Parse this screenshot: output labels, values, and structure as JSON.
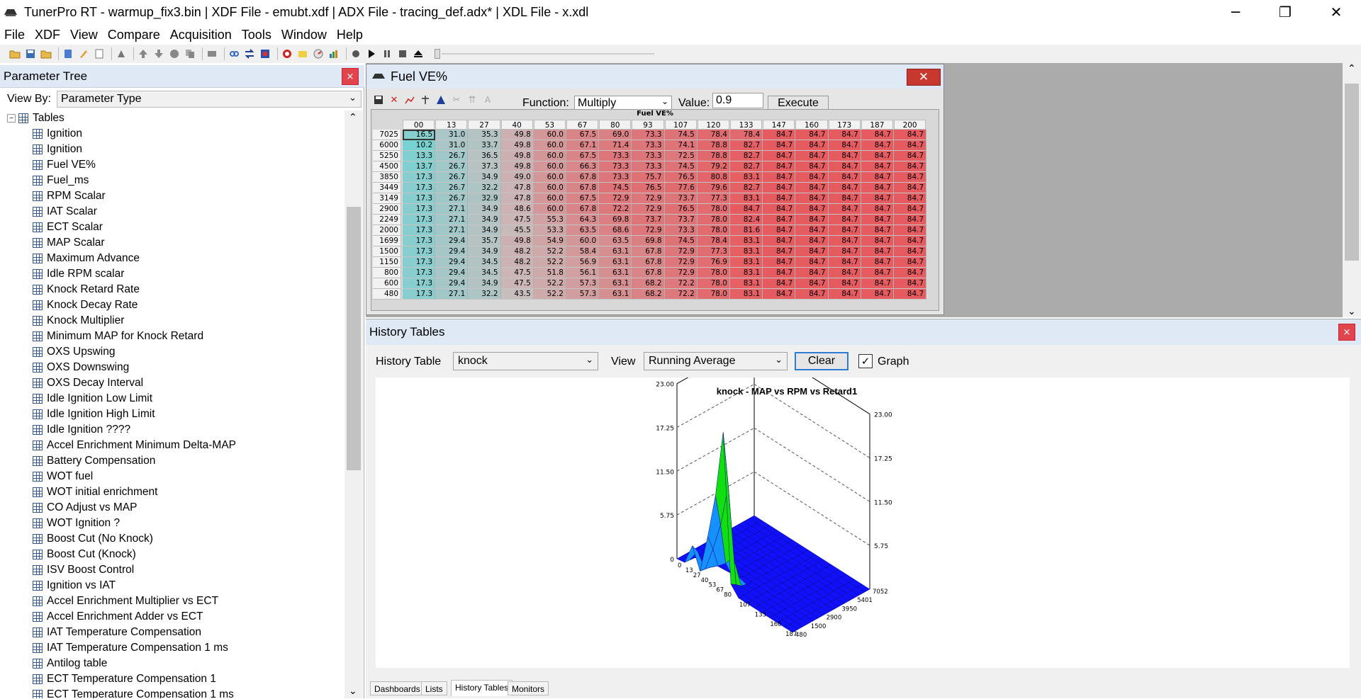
{
  "window": {
    "title": "TunerPro RT - warmup_fix3.bin | XDF File - emubt.xdf | ADX File - tracing_def.adx* | XDL File - x.xdl",
    "minimize": "─",
    "restore": "❐",
    "close": "✕"
  },
  "menu": [
    "File",
    "XDF",
    "View",
    "Compare",
    "Acquisition",
    "Tools",
    "Window",
    "Help"
  ],
  "param_tree": {
    "title": "Parameter Tree",
    "close": "×",
    "view_by_label": "View By:",
    "view_by_value": "Parameter Type",
    "root": "Tables",
    "items": [
      "Ignition",
      "Ignition",
      "Fuel VE%",
      "Fuel_ms",
      "RPM Scalar",
      "IAT Scalar",
      "ECT Scalar",
      "MAP Scalar",
      "Maximum Advance",
      "Idle RPM scalar",
      "Knock Retard Rate",
      "Knock Decay Rate",
      "Knock Multiplier",
      "Minimum MAP for Knock Retard",
      "OXS Upswing",
      "OXS Downswing",
      "OXS Decay Interval",
      "Idle Ignition Low Limit",
      "Idle Ignition High Limit",
      "Idle Ignition ????",
      "Accel Enrichment Minimum Delta-MAP",
      "Battery Compensation",
      "WOT fuel",
      "WOT initial enrichment",
      "CO Adjust vs MAP",
      "WOT Ignition ?",
      "Boost Cut (No Knock)",
      "Boost Cut (Knock)",
      "ISV Boost Control",
      "Ignition vs IAT",
      "Accel Enrichment Multiplier vs ECT",
      "Accel Enrichment Adder vs ECT",
      "IAT Temperature Compensation",
      "IAT Temperature Compensation 1 ms",
      "Antilog table",
      "ECT Temperature Compensation 1",
      "ECT Temperature Compensation 1 ms"
    ]
  },
  "fuel_ve": {
    "title": "Fuel VE%",
    "close": "✕",
    "function_label": "Function:",
    "function_value": "Multiply",
    "value_label": "Value:",
    "value": "0.9",
    "execute": "Execute",
    "grid_title": "Fuel VE%",
    "cols": [
      "00",
      "13",
      "27",
      "40",
      "53",
      "67",
      "80",
      "93",
      "107",
      "120",
      "133",
      "147",
      "160",
      "173",
      "187",
      "200"
    ],
    "rows": [
      "7025",
      "6000",
      "5250",
      "4500",
      "3850",
      "3449",
      "3149",
      "2900",
      "2249",
      "2000",
      "1699",
      "1500",
      "1150",
      "800",
      "600",
      "480"
    ],
    "values": [
      [
        "16.5",
        "31.0",
        "35.3",
        "49.8",
        "60.0",
        "67.5",
        "69.0",
        "73.3",
        "74.5",
        "78.4",
        "78.4",
        "84.7",
        "84.7",
        "84.7",
        "84.7",
        "84.7"
      ],
      [
        "10.2",
        "31.0",
        "33.7",
        "49.8",
        "60.0",
        "67.1",
        "71.4",
        "73.3",
        "74.1",
        "78.8",
        "82.7",
        "84.7",
        "84.7",
        "84.7",
        "84.7",
        "84.7"
      ],
      [
        "13.3",
        "26.7",
        "36.5",
        "49.8",
        "60.0",
        "67.5",
        "73.3",
        "73.3",
        "72.5",
        "78.8",
        "82.7",
        "84.7",
        "84.7",
        "84.7",
        "84.7",
        "84.7"
      ],
      [
        "13.7",
        "26.7",
        "37.3",
        "49.8",
        "60.0",
        "66.3",
        "73.3",
        "73.3",
        "74.5",
        "79.2",
        "82.7",
        "84.7",
        "84.7",
        "84.7",
        "84.7",
        "84.7"
      ],
      [
        "17.3",
        "26.7",
        "34.9",
        "49.0",
        "60.0",
        "67.8",
        "73.3",
        "75.7",
        "76.5",
        "80.8",
        "83.1",
        "84.7",
        "84.7",
        "84.7",
        "84.7",
        "84.7"
      ],
      [
        "17.3",
        "26.7",
        "32.2",
        "47.8",
        "60.0",
        "67.8",
        "74.5",
        "76.5",
        "77.6",
        "79.6",
        "82.7",
        "84.7",
        "84.7",
        "84.7",
        "84.7",
        "84.7"
      ],
      [
        "17.3",
        "26.7",
        "32.9",
        "47.8",
        "60.0",
        "67.5",
        "72.9",
        "72.9",
        "73.7",
        "77.3",
        "83.1",
        "84.7",
        "84.7",
        "84.7",
        "84.7",
        "84.7"
      ],
      [
        "17.3",
        "27.1",
        "34.9",
        "48.6",
        "60.0",
        "67.8",
        "72.2",
        "72.9",
        "76.5",
        "78.0",
        "84.7",
        "84.7",
        "84.7",
        "84.7",
        "84.7",
        "84.7"
      ],
      [
        "17.3",
        "27.1",
        "34.9",
        "47.5",
        "55.3",
        "64.3",
        "69.8",
        "73.7",
        "73.7",
        "78.0",
        "82.4",
        "84.7",
        "84.7",
        "84.7",
        "84.7",
        "84.7"
      ],
      [
        "17.3",
        "27.1",
        "34.9",
        "45.5",
        "53.3",
        "63.5",
        "68.6",
        "72.9",
        "73.3",
        "78.0",
        "81.6",
        "84.7",
        "84.7",
        "84.7",
        "84.7",
        "84.7"
      ],
      [
        "17.3",
        "29.4",
        "35.7",
        "49.8",
        "54.9",
        "60.0",
        "63.5",
        "69.8",
        "74.5",
        "78.4",
        "83.1",
        "84.7",
        "84.7",
        "84.7",
        "84.7",
        "84.7"
      ],
      [
        "17.3",
        "29.4",
        "34.9",
        "48.2",
        "52.2",
        "58.4",
        "63.1",
        "67.8",
        "72.9",
        "77.3",
        "83.1",
        "84.7",
        "84.7",
        "84.7",
        "84.7",
        "84.7"
      ],
      [
        "17.3",
        "29.4",
        "34.5",
        "48.2",
        "52.2",
        "56.9",
        "63.1",
        "67.8",
        "72.9",
        "76.9",
        "83.1",
        "84.7",
        "84.7",
        "84.7",
        "84.7",
        "84.7"
      ],
      [
        "17.3",
        "29.4",
        "34.5",
        "47.5",
        "51.8",
        "56.1",
        "63.1",
        "67.8",
        "72.9",
        "78.0",
        "83.1",
        "84.7",
        "84.7",
        "84.7",
        "84.7",
        "84.7"
      ],
      [
        "17.3",
        "29.4",
        "34.9",
        "47.5",
        "52.2",
        "57.3",
        "63.1",
        "68.2",
        "72.2",
        "78.0",
        "83.1",
        "84.7",
        "84.7",
        "84.7",
        "84.7",
        "84.7"
      ],
      [
        "17.3",
        "27.1",
        "32.2",
        "43.5",
        "52.2",
        "57.3",
        "63.1",
        "68.2",
        "72.2",
        "78.0",
        "83.1",
        "84.7",
        "84.7",
        "84.7",
        "84.7",
        "84.7"
      ]
    ]
  },
  "history": {
    "title": "History Tables",
    "close": "×",
    "table_label": "History Table",
    "table_value": "knock",
    "view_label": "View",
    "view_value": "Running Average",
    "clear": "Clear",
    "graph_label": "Graph",
    "graph_checked": true
  },
  "chart_data": {
    "type": "surface3d",
    "title": "knock - MAP vs RPM vs Retard1",
    "zticks_left": [
      "23.00",
      "17.25",
      "11.50",
      "5.75",
      "0"
    ],
    "zticks_right": [
      "23.00",
      "17.25",
      "11.50",
      "5.75"
    ],
    "xticks": [
      "0",
      "13",
      "27",
      "40",
      "53",
      "67",
      "80",
      "107",
      "133",
      "160",
      "187"
    ],
    "yticks": [
      "480",
      "1500",
      "2900",
      "3950",
      "5401",
      "7052"
    ],
    "zlim": [
      0,
      23
    ],
    "peaks": [
      {
        "map": 80,
        "rpm": 480,
        "value": 20.5
      },
      {
        "map": 67,
        "rpm": 480,
        "value": 11.5
      },
      {
        "map": 53,
        "rpm": 480,
        "value": 5.5
      },
      {
        "map": 27,
        "rpm": 480,
        "value": 3.0
      }
    ],
    "colors": {
      "base": "#1010ff",
      "mid": "#1490ff",
      "peak": "#10e010"
    }
  },
  "bottom_tabs": [
    "Dashboards",
    "Lists",
    "History Tables",
    "Monitors"
  ],
  "active_tab": "History Tables"
}
